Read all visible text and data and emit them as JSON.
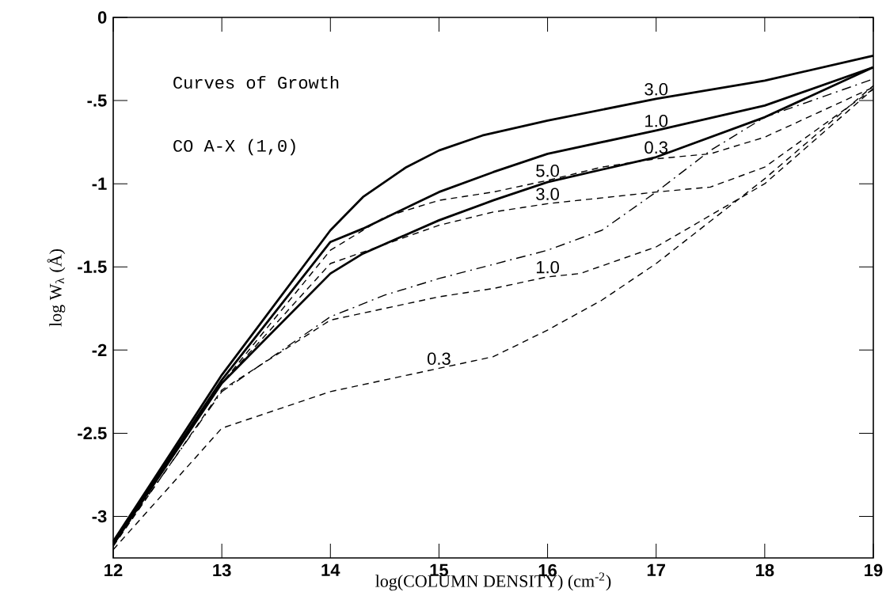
{
  "chart_data": {
    "type": "line",
    "xlabel": "log(COLUMN DENSITY)  (cm$^{-2}$)",
    "ylabel": "log W$_{λ}$  (Å)",
    "xlim": [
      12,
      19
    ],
    "ylim": [
      -3.25,
      0
    ],
    "xticks": [
      12,
      13,
      14,
      15,
      16,
      17,
      18,
      19
    ],
    "yticks": [
      {
        "value": -3,
        "label": "-3"
      },
      {
        "value": -2.5,
        "label": "-2.5"
      },
      {
        "value": -2,
        "label": "-2"
      },
      {
        "value": -1.5,
        "label": "-1.5"
      },
      {
        "value": -1,
        "label": "-1"
      },
      {
        "value": -0.5,
        "label": "-.5"
      },
      {
        "value": 0,
        "label": "0"
      }
    ],
    "grid": false,
    "marker": "none",
    "series": [
      {
        "color": "#000000",
        "line_style": "solid",
        "x": [
          12,
          13,
          14,
          14.3,
          14.7,
          15,
          15.4,
          16,
          17,
          18,
          19
        ],
        "values": [
          -3.15,
          -2.15,
          -1.28,
          -1.08,
          -0.9,
          -0.8,
          -0.71,
          -0.62,
          -0.49,
          -0.38,
          -0.23
        ]
      },
      {
        "color": "#000000",
        "line_style": "solid",
        "x": [
          12,
          13,
          14,
          14.3,
          15,
          15.5,
          16,
          17,
          18,
          19
        ],
        "values": [
          -3.16,
          -2.18,
          -1.35,
          -1.27,
          -1.05,
          -0.93,
          -0.82,
          -0.68,
          -0.53,
          -0.3
        ]
      },
      {
        "color": "#000000",
        "line_style": "solid",
        "x": [
          12,
          13,
          14,
          14.3,
          15,
          15.5,
          16,
          17,
          18,
          19
        ],
        "values": [
          -3.17,
          -2.2,
          -1.54,
          -1.42,
          -1.22,
          -1.1,
          -0.99,
          -0.84,
          -0.6,
          -0.3
        ]
      },
      {
        "color": "#000000",
        "line_style": "dashed",
        "x": [
          12,
          13,
          14,
          14.5,
          15,
          15.5,
          16,
          16.5,
          17,
          17.5,
          18,
          19
        ],
        "values": [
          -3.17,
          -2.2,
          -1.4,
          -1.2,
          -1.1,
          -1.05,
          -0.98,
          -0.9,
          -0.85,
          -0.82,
          -0.72,
          -0.42
        ]
      },
      {
        "color": "#000000",
        "line_style": "dashed",
        "x": [
          12,
          13,
          14,
          15,
          15.5,
          16,
          17,
          17.5,
          18,
          19
        ],
        "values": [
          -3.17,
          -2.2,
          -1.48,
          -1.25,
          -1.17,
          -1.12,
          -1.05,
          -1.02,
          -0.9,
          -0.43
        ]
      },
      {
        "color": "#000000",
        "line_style": "dashed",
        "x": [
          12,
          13,
          14,
          15,
          15.5,
          16,
          16.3,
          17,
          18,
          19
        ],
        "values": [
          -3.18,
          -2.24,
          -1.82,
          -1.68,
          -1.63,
          -1.56,
          -1.54,
          -1.38,
          -1.0,
          -0.43
        ]
      },
      {
        "color": "#000000",
        "line_style": "dashed",
        "x": [
          12,
          13,
          14,
          15,
          15.5,
          16,
          16.5,
          17,
          18,
          19
        ],
        "values": [
          -3.2,
          -2.47,
          -2.25,
          -2.11,
          -2.04,
          -1.88,
          -1.7,
          -1.48,
          -0.97,
          -0.41
        ]
      },
      {
        "color": "#000000",
        "line_style": "dashdot",
        "x": [
          12,
          13,
          14,
          14.5,
          15,
          16,
          16.5,
          17,
          17.5,
          18,
          19
        ],
        "values": [
          -3.17,
          -2.25,
          -1.8,
          -1.67,
          -1.57,
          -1.4,
          -1.28,
          -1.05,
          -0.8,
          -0.6,
          -0.37
        ]
      }
    ],
    "annotations": [
      "Curves of Growth",
      "CO A-X (1,0)",
      {
        "text": "3.0",
        "x": 17,
        "y": -0.49
      },
      {
        "text": "1.0",
        "x": 17,
        "y": -0.68
      },
      {
        "text": "0.3",
        "x": 17,
        "y": -0.84
      },
      {
        "text": "5.0",
        "x": 16,
        "y": -0.98
      },
      {
        "text": "3.0",
        "x": 16,
        "y": -1.12
      },
      {
        "text": "1.0",
        "x": 16,
        "y": -1.56
      },
      {
        "text": "0.3",
        "x": 15,
        "y": -2.11
      }
    ]
  }
}
